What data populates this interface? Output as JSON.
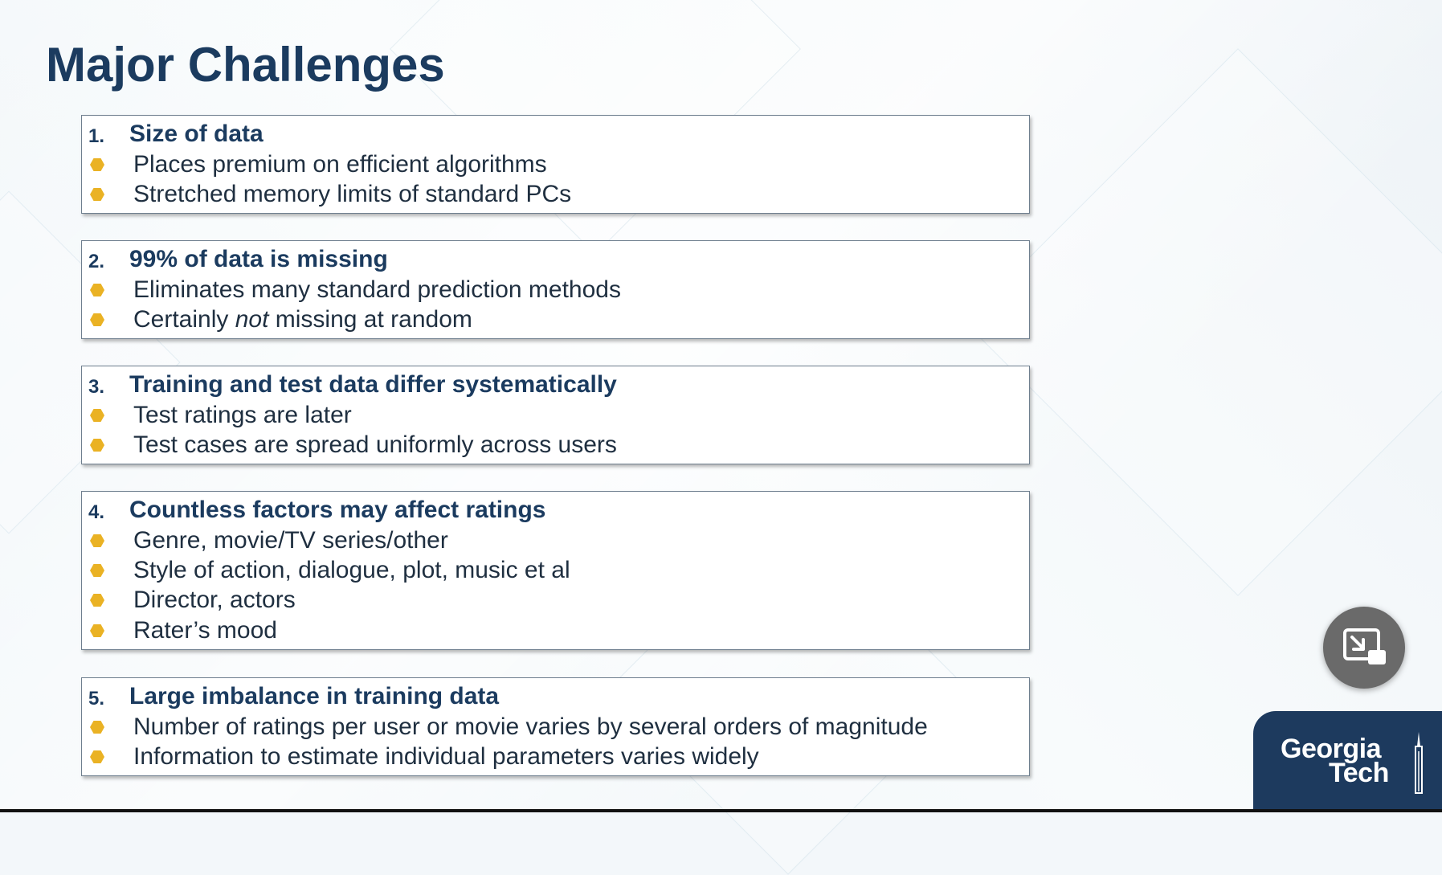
{
  "slide": {
    "title": "Major Challenges",
    "challenges": [
      {
        "number": "1.",
        "heading": "Size of data",
        "bullets": [
          "Places premium on efficient algorithms",
          "Stretched memory limits of standard PCs"
        ]
      },
      {
        "number": "2.",
        "heading": "99% of data is missing",
        "bullets": [
          "Eliminates many standard prediction methods",
          "Certainly not missing at random"
        ]
      },
      {
        "number": "3.",
        "heading": "Training and test data differ systematically",
        "bullets": [
          "Test ratings are later",
          "Test cases are spread uniformly across users"
        ]
      },
      {
        "number": "4.",
        "heading": "Countless factors may affect ratings",
        "bullets": [
          "Genre, movie/TV series/other",
          "Style of action, dialogue, plot, music et al",
          "Director, actors",
          "Rater’s mood"
        ]
      },
      {
        "number": "5.",
        "heading": "Large imbalance in training data",
        "bullets": [
          "Number of ratings per user or movie varies by several orders of magnitude",
          "Information to estimate individual parameters varies widely"
        ]
      }
    ]
  },
  "logo": {
    "line1": "Georgia",
    "line2": "Tech"
  },
  "controls": {
    "pip_icon": "exit-picture-in-picture-icon"
  },
  "colors": {
    "title": "#1b3b5f",
    "bullet": "#eab224",
    "logo_bg": "#1d3a5e"
  }
}
